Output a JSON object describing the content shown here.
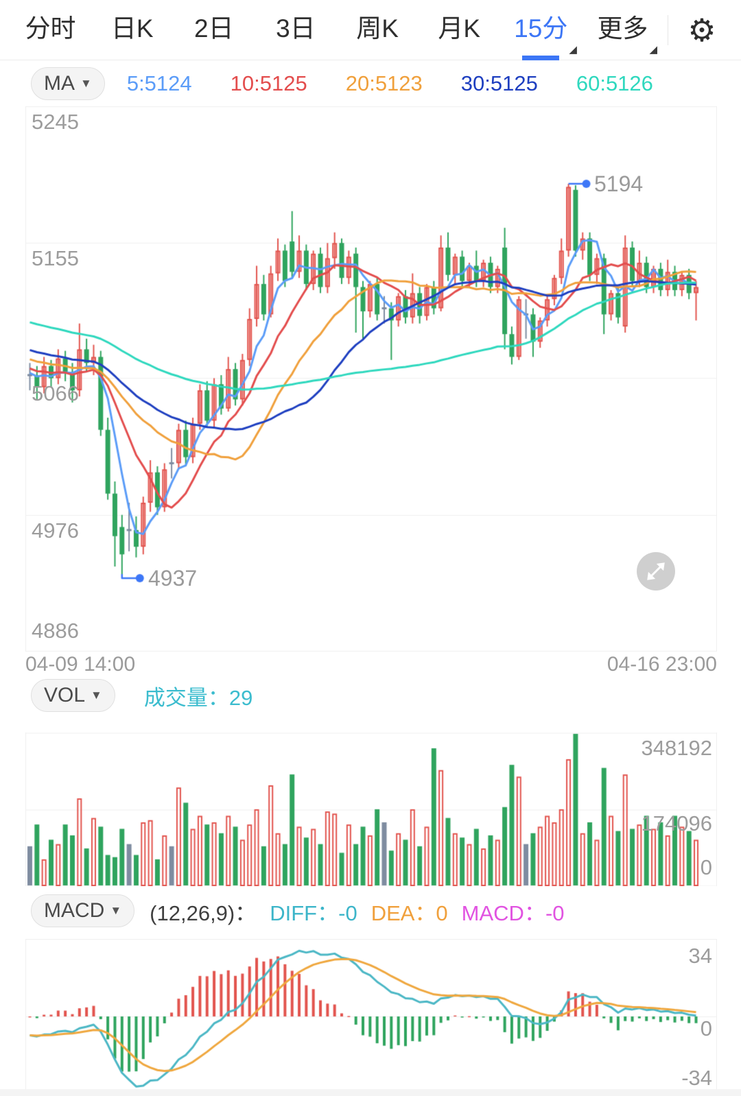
{
  "tabbar": {
    "tabs": [
      "分时",
      "日K",
      "2日",
      "3日",
      "周K",
      "月K",
      "15分",
      "更多"
    ],
    "selected": "15分",
    "selected_color": "#3c76f6"
  },
  "icons": {
    "dropdown_caret": "▼",
    "dropdown_corner": "◢",
    "gear": "⚙"
  },
  "indicators": {
    "ma": {
      "button": "MA",
      "items": [
        {
          "text": "5:5124",
          "color": "#5b9cf8"
        },
        {
          "text": "10:5125",
          "color": "#e34d4d"
        },
        {
          "text": "20:5123",
          "color": "#f0a03c"
        },
        {
          "text": "30:5125",
          "color": "#1e3fc0"
        },
        {
          "text": "60:5126",
          "color": "#2fd8be"
        }
      ]
    },
    "vol": {
      "button": "VOL",
      "label": "成交量：29",
      "color": "#3bbcce"
    },
    "macd": {
      "button": "MACD",
      "params": "(12,26,9)：",
      "items": [
        {
          "text": "DIFF：-0",
          "color": "#3cb5c9"
        },
        {
          "text": "DEA：0",
          "color": "#f0a03c"
        },
        {
          "text": "MACD：-0",
          "color": "#e153e1"
        }
      ]
    }
  },
  "main_chart": {
    "y_axis": [
      "5245",
      "5155",
      "5066",
      "4976",
      "4886"
    ],
    "x_axis_left": "04-09 14:00",
    "x_axis_right": "04-16 23:00",
    "high_label": "5194",
    "low_label": "4937"
  },
  "vol_chart": {
    "y_axis": [
      "348192",
      "174096",
      "0"
    ]
  },
  "macd_chart": {
    "y_axis": [
      "34",
      "0",
      "-34"
    ]
  },
  "chart_data": {
    "type": "candlestick",
    "price_max": 5245,
    "price_min": 4886,
    "high_point": {
      "index": 76,
      "value": 5194
    },
    "low_point": {
      "index": 13,
      "value": 4937
    },
    "ma_periods": [
      5,
      10,
      20,
      30,
      60
    ],
    "ma_seed": {
      "from": 5140,
      "to": 5068,
      "bars": 60
    },
    "macd_params": [
      12,
      26,
      9
    ],
    "macd_axis_max": 34,
    "vol_axis_mid": 174096,
    "colors": {
      "up": "#e2544e",
      "down": "#2fa45e",
      "neutral": "#7e8ca0",
      "ma": [
        "#5b9cf8",
        "#e34d4d",
        "#f0a03c",
        "#1e3fc0",
        "#2fd8be"
      ],
      "diff": "#4bb7c5",
      "dea": "#efa73e",
      "annotation": "#3d77f7",
      "grid": "#efefef"
    },
    "candles": [
      [
        5068,
        5076,
        5058,
        5068
      ],
      [
        5068,
        5074,
        5052,
        5060
      ],
      [
        5060,
        5080,
        5056,
        5074
      ],
      [
        5074,
        5078,
        5060,
        5066
      ],
      [
        5066,
        5085,
        5062,
        5079
      ],
      [
        5079,
        5084,
        5064,
        5070
      ],
      [
        5070,
        5076,
        5050,
        5058
      ],
      [
        5058,
        5102,
        5054,
        5085
      ],
      [
        5085,
        5092,
        5070,
        5076
      ],
      [
        5076,
        5088,
        5068,
        5080
      ],
      [
        5080,
        5084,
        5028,
        5032
      ],
      [
        5032,
        5040,
        4986,
        4990
      ],
      [
        4990,
        4998,
        4942,
        4962
      ],
      [
        4968,
        4976,
        4937,
        4950
      ],
      [
        4966,
        4984,
        4952,
        4966
      ],
      [
        4966,
        4975,
        4948,
        4955
      ],
      [
        4955,
        4988,
        4950,
        4984
      ],
      [
        4984,
        5012,
        4978,
        5004
      ],
      [
        5004,
        5008,
        4976,
        4981
      ],
      [
        4981,
        5010,
        4978,
        5006
      ],
      [
        5010,
        5020,
        5000,
        5010
      ],
      [
        5010,
        5036,
        5006,
        5032
      ],
      [
        5032,
        5038,
        5008,
        5014
      ],
      [
        5014,
        5040,
        5010,
        5036
      ],
      [
        5036,
        5062,
        5032,
        5058
      ],
      [
        5058,
        5064,
        5034,
        5038
      ],
      [
        5038,
        5066,
        5034,
        5062
      ],
      [
        5062,
        5068,
        5042,
        5046
      ],
      [
        5046,
        5080,
        5044,
        5072
      ],
      [
        5072,
        5076,
        5048,
        5052
      ],
      [
        5052,
        5082,
        5048,
        5078
      ],
      [
        5078,
        5112,
        5074,
        5105
      ],
      [
        5105,
        5140,
        5100,
        5128
      ],
      [
        5128,
        5134,
        5104,
        5108
      ],
      [
        5108,
        5140,
        5106,
        5135
      ],
      [
        5135,
        5158,
        5130,
        5150
      ],
      [
        5150,
        5154,
        5126,
        5130
      ],
      [
        5156,
        5176,
        5132,
        5136
      ],
      [
        5136,
        5160,
        5132,
        5150
      ],
      [
        5150,
        5154,
        5124,
        5128
      ],
      [
        5128,
        5150,
        5124,
        5148
      ],
      [
        5148,
        5152,
        5122,
        5126
      ],
      [
        5126,
        5155,
        5122,
        5145
      ],
      [
        5145,
        5162,
        5138,
        5155
      ],
      [
        5155,
        5158,
        5128,
        5132
      ],
      [
        5132,
        5150,
        5128,
        5146
      ],
      [
        5148,
        5152,
        5096,
        5126
      ],
      [
        5126,
        5130,
        5092,
        5110
      ],
      [
        5110,
        5130,
        5106,
        5128
      ],
      [
        5128,
        5132,
        5104,
        5108
      ],
      [
        5112,
        5120,
        5102,
        5112
      ],
      [
        5112,
        5116,
        5078,
        5104
      ],
      [
        5104,
        5122,
        5100,
        5120
      ],
      [
        5120,
        5124,
        5102,
        5106
      ],
      [
        5106,
        5135,
        5102,
        5122
      ],
      [
        5122,
        5126,
        5102,
        5107
      ],
      [
        5107,
        5128,
        5104,
        5126
      ],
      [
        5126,
        5130,
        5108,
        5112
      ],
      [
        5112,
        5160,
        5110,
        5152
      ],
      [
        5152,
        5162,
        5130,
        5134
      ],
      [
        5134,
        5148,
        5128,
        5146
      ],
      [
        5146,
        5150,
        5126,
        5130
      ],
      [
        5130,
        5142,
        5126,
        5140
      ],
      [
        5140,
        5150,
        5126,
        5130
      ],
      [
        5130,
        5144,
        5126,
        5142
      ],
      [
        5142,
        5146,
        5122,
        5126
      ],
      [
        5126,
        5140,
        5122,
        5138
      ],
      [
        5152,
        5165,
        5085,
        5095
      ],
      [
        5095,
        5100,
        5075,
        5080
      ],
      [
        5080,
        5120,
        5078,
        5118
      ],
      [
        5108,
        5118,
        5092,
        5108
      ],
      [
        5108,
        5112,
        5080,
        5090
      ],
      [
        5090,
        5106,
        5086,
        5104
      ],
      [
        5104,
        5120,
        5100,
        5118
      ],
      [
        5118,
        5134,
        5114,
        5132
      ],
      [
        5132,
        5158,
        5128,
        5150
      ],
      [
        5150,
        5194,
        5146,
        5192
      ],
      [
        5190,
        5193,
        5146,
        5150
      ],
      [
        5150,
        5162,
        5144,
        5158
      ],
      [
        5158,
        5162,
        5130,
        5134
      ],
      [
        5134,
        5148,
        5128,
        5145
      ],
      [
        5145,
        5148,
        5095,
        5108
      ],
      [
        5108,
        5124,
        5104,
        5122
      ],
      [
        5122,
        5126,
        5102,
        5106
      ],
      [
        5100,
        5160,
        5096,
        5152
      ],
      [
        5152,
        5156,
        5126,
        5130
      ],
      [
        5130,
        5150,
        5126,
        5142
      ],
      [
        5142,
        5146,
        5122,
        5126
      ],
      [
        5126,
        5140,
        5122,
        5138
      ],
      [
        5138,
        5142,
        5120,
        5124
      ],
      [
        5124,
        5144,
        5120,
        5136
      ],
      [
        5136,
        5140,
        5120,
        5124
      ],
      [
        5124,
        5136,
        5120,
        5134
      ],
      [
        5134,
        5138,
        5118,
        5122
      ],
      [
        5122,
        5130,
        5104,
        5126
      ]
    ],
    "volumes_k": [
      90,
      140,
      60,
      105,
      95,
      140,
      115,
      200,
      85,
      155,
      135,
      70,
      65,
      130,
      95,
      70,
      145,
      150,
      60,
      115,
      90,
      225,
      190,
      130,
      160,
      140,
      145,
      120,
      160,
      135,
      105,
      140,
      175,
      90,
      230,
      120,
      95,
      255,
      135,
      110,
      130,
      95,
      170,
      165,
      75,
      140,
      95,
      135,
      115,
      175,
      145,
      80,
      120,
      105,
      175,
      90,
      135,
      315,
      265,
      155,
      120,
      110,
      95,
      130,
      85,
      115,
      105,
      180,
      277,
      250,
      95,
      120,
      135,
      160,
      145,
      175,
      290,
      380,
      120,
      145,
      105,
      270,
      160,
      125,
      255,
      130,
      140,
      160,
      130,
      145,
      115,
      160,
      135,
      125,
      105
    ]
  }
}
